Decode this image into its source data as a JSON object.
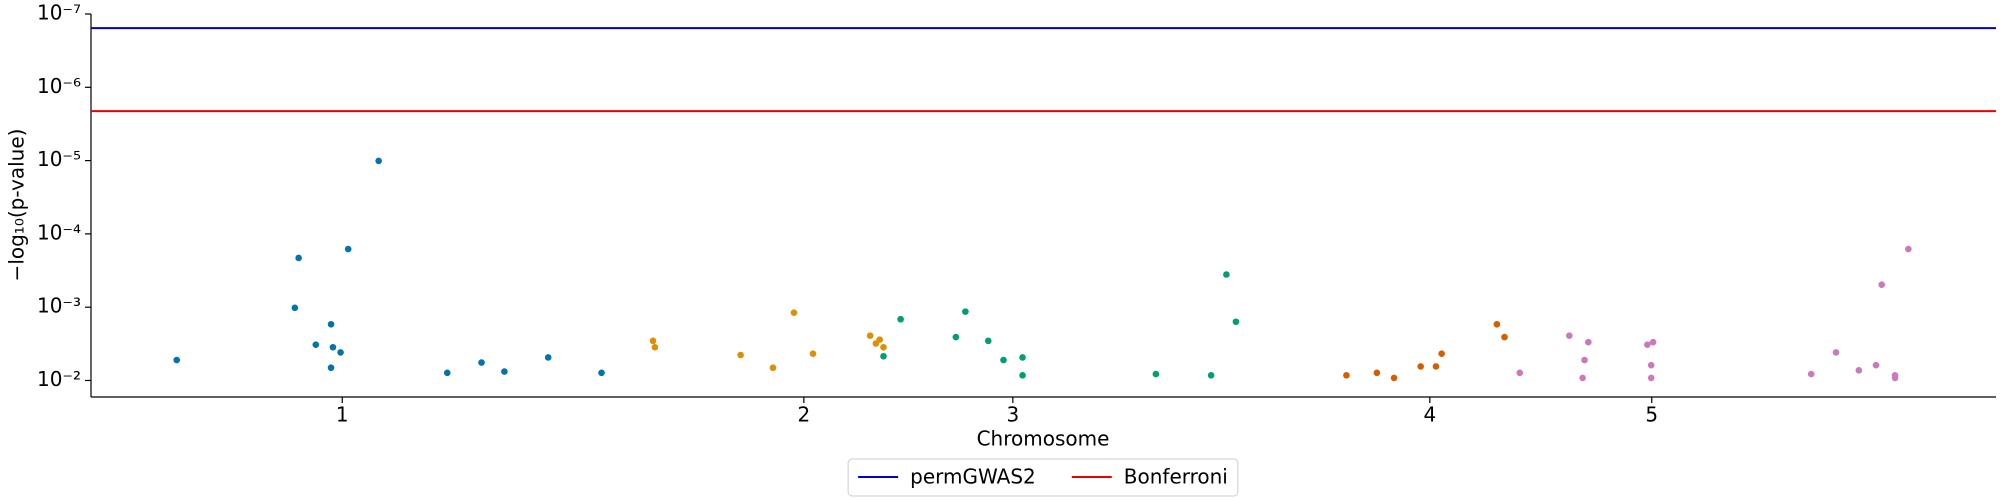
{
  "chart_data": {
    "type": "scatter",
    "x_label": "Chromosome",
    "y_label": "−log₁₀(p-value)",
    "yscale": "log",
    "xlim": [
      0,
      100
    ],
    "ylim": [
      0.0168,
      1e-07
    ],
    "xticks": [
      {
        "value": 13.19,
        "label": "1"
      },
      {
        "value": 37.42,
        "label": "2"
      },
      {
        "value": 48.39,
        "label": "3"
      },
      {
        "value": 70.28,
        "label": "4"
      },
      {
        "value": 81.93,
        "label": "5"
      }
    ],
    "yticks": [
      {
        "value": 1e-07,
        "label": "10⁻⁷"
      },
      {
        "value": 1e-06,
        "label": "10⁻⁶"
      },
      {
        "value": 1e-05,
        "label": "10⁻⁵"
      },
      {
        "value": 0.0001,
        "label": "10⁻⁴"
      },
      {
        "value": 0.001,
        "label": "10⁻³"
      },
      {
        "value": 0.01,
        "label": "10⁻²"
      }
    ],
    "legend": "below",
    "lines": [
      {
        "name": "permGWAS2",
        "color": "#0000cc",
        "value": 1.56e-07
      },
      {
        "name": "Bonferroni",
        "color": "#ee0000",
        "value": 2.11e-06
      }
    ],
    "series": [
      {
        "color": "#0173b2",
        "x": [
          4.5,
          10.9,
          10.7,
          12.6,
          11.8,
          12.7,
          13.1,
          12.6,
          13.5,
          15.1,
          18.7,
          20.5,
          21.7,
          24.0,
          26.8
        ],
        "values": [
          0.00526,
          0.000213,
          0.00102,
          0.00171,
          0.00325,
          0.00352,
          0.00414,
          0.0067,
          0.000161,
          1.01e-05,
          0.00785,
          0.0057,
          0.00755,
          0.00485,
          0.00785
        ]
      },
      {
        "color": "#de8f05",
        "x": [
          29.5,
          29.6,
          34.1,
          35.8,
          36.9,
          37.9,
          40.9,
          41.4,
          41.2,
          41.6
        ],
        "values": [
          0.00288,
          0.00352,
          0.00449,
          0.0067,
          0.00119,
          0.00431,
          0.00245,
          0.00277,
          0.00313,
          0.00352
        ]
      },
      {
        "color": "#029e73",
        "x": [
          41.6,
          42.5,
          45.9,
          45.4,
          47.1,
          47.9,
          48.9,
          48.9,
          55.9,
          58.8,
          59.6,
          60.1
        ],
        "values": [
          0.00467,
          0.00146,
          0.00115,
          0.00256,
          0.00288,
          0.00526,
          0.00485,
          0.00851,
          0.00818,
          0.00851,
          0.000358,
          0.00158
        ]
      },
      {
        "color": "#d55e00",
        "x": [
          65.9,
          67.5,
          68.4,
          69.8,
          70.6,
          70.9,
          73.8,
          74.2
        ],
        "values": [
          0.00851,
          0.00785,
          0.00923,
          0.00643,
          0.00643,
          0.00431,
          0.00171,
          0.00256
        ]
      },
      {
        "color": "#cc78bc",
        "x": [
          75.0,
          77.6,
          78.6,
          78.4,
          78.3,
          81.7,
          82.0,
          81.9,
          81.9,
          90.3,
          91.6,
          92.8,
          93.7,
          94.0,
          94.7,
          94.7,
          95.4
        ],
        "values": [
          0.00785,
          0.00245,
          0.003,
          0.00526,
          0.00923,
          0.00325,
          0.003,
          0.00618,
          0.00923,
          0.00818,
          0.00414,
          0.00727,
          0.00618,
          0.000493,
          0.00851,
          0.00923,
          0.000161
        ]
      }
    ]
  }
}
